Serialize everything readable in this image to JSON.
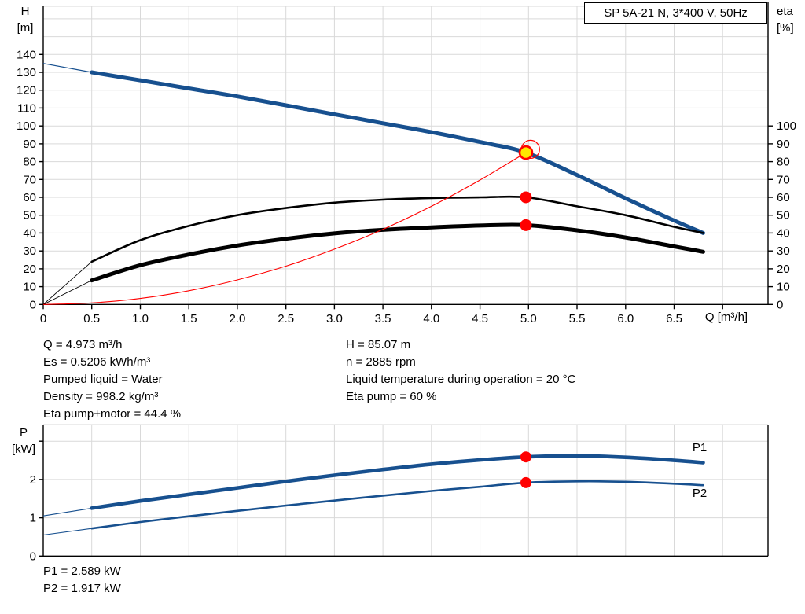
{
  "title_box": {
    "label": "SP 5A-21 N, 3*400 V, 50Hz"
  },
  "info_block": {
    "left": [
      "Q = 4.973 m³/h",
      "Es = 0.5206 kWh/m³",
      "Pumped liquid = Water",
      "Density = 998.2 kg/m³",
      "Eta pump+motor = 44.4 %"
    ],
    "right": [
      "H = 85.07 m",
      "n = 2885 rpm",
      "Liquid temperature during operation = 20 °C",
      "Eta pump = 60 %"
    ]
  },
  "power_block": {
    "lines": [
      "P1 = 2.589 kW",
      "P2 = 1.917 kW"
    ]
  },
  "colors": {
    "curve_blue": "#17508f",
    "curve_black": "#000000",
    "system_red": "#ff0000",
    "marker_red": "#ff0000",
    "marker_yellow": "#ffe600",
    "grid": "#d9d9d9",
    "axis": "#000000"
  },
  "chart_data": [
    {
      "type": "line",
      "name": "hq-eta-chart",
      "title": "SP 5A-21 N, 3*400 V, 50Hz",
      "grid": true,
      "x_axis": {
        "label": "Q [m³/h]",
        "min": 0,
        "max": 7.47,
        "tick_step": 0.5,
        "last_labeled_tick": 6.5
      },
      "y_left_axis": {
        "label": "H",
        "unit": "[m]",
        "min": 0,
        "max": 166,
        "tick_step": 10,
        "last_labeled_tick": 140
      },
      "y_right_axis": {
        "label": "eta",
        "unit": "[%]",
        "min": 0,
        "max": 100,
        "tick_step": 10,
        "last_labeled_tick": 100
      },
      "series": [
        {
          "name": "pump-curve-H",
          "color": "#17508f",
          "width": 5,
          "thin_lead_width": 1.2,
          "lead_until_q": 0.5,
          "points": [
            [
              0,
              135
            ],
            [
              0.5,
              130
            ],
            [
              1,
              125.5
            ],
            [
              1.5,
              121
            ],
            [
              2,
              116.5
            ],
            [
              2.5,
              111.5
            ],
            [
              3,
              106.5
            ],
            [
              3.5,
              101.5
            ],
            [
              4,
              96.5
            ],
            [
              4.5,
              91
            ],
            [
              4.973,
              85.07
            ],
            [
              5.5,
              72.5
            ],
            [
              6,
              59.5
            ],
            [
              6.5,
              47
            ],
            [
              6.8,
              40
            ]
          ]
        },
        {
          "name": "eta-pump-curve",
          "color": "#000000",
          "width": 2.6,
          "thin_lead_width": 0.9,
          "lead_until_q": 0.5,
          "points": [
            [
              0,
              0
            ],
            [
              0.5,
              24
            ],
            [
              1,
              36
            ],
            [
              1.5,
              44
            ],
            [
              2,
              50
            ],
            [
              2.5,
              54
            ],
            [
              3,
              57
            ],
            [
              3.5,
              58.7
            ],
            [
              4,
              59.6
            ],
            [
              4.5,
              60
            ],
            [
              4.973,
              60
            ],
            [
              5.5,
              55
            ],
            [
              6,
              50
            ],
            [
              6.5,
              43.5
            ],
            [
              6.8,
              40
            ]
          ]
        },
        {
          "name": "eta-pump-plus-motor-curve",
          "color": "#000000",
          "width": 5,
          "thin_lead_width": 0.9,
          "lead_until_q": 0.5,
          "points": [
            [
              0,
              0
            ],
            [
              0.5,
              13.5
            ],
            [
              1,
              22
            ],
            [
              1.5,
              28
            ],
            [
              2,
              33
            ],
            [
              2.5,
              36.8
            ],
            [
              3,
              39.8
            ],
            [
              3.5,
              41.8
            ],
            [
              4,
              43.2
            ],
            [
              4.5,
              44.2
            ],
            [
              4.973,
              44.4
            ],
            [
              5.5,
              41.5
            ],
            [
              6,
              37.5
            ],
            [
              6.5,
              32.5
            ],
            [
              6.8,
              29.5
            ]
          ]
        },
        {
          "name": "system-curve",
          "color": "#ff0000",
          "width": 1.1,
          "points": [
            [
              0,
              0
            ],
            [
              0.5,
              0.9
            ],
            [
              1,
              3.4
            ],
            [
              1.5,
              7.7
            ],
            [
              2,
              13.8
            ],
            [
              2.5,
              21.5
            ],
            [
              3,
              31
            ],
            [
              3.5,
              42.1
            ],
            [
              4,
              55
            ],
            [
              4.5,
              69.7
            ],
            [
              4.973,
              85.07
            ]
          ]
        }
      ],
      "markers": [
        {
          "name": "duty-point-ring",
          "shape": "ring",
          "q": 5.02,
          "value": 86.9,
          "r": 11.5,
          "stroke": "#ff0000",
          "stroke_width": 1.2
        },
        {
          "name": "duty-point",
          "shape": "dot",
          "q": 4.973,
          "value": 85.07,
          "r": 8,
          "fill": "#ffe600",
          "stroke": "#ff0000",
          "stroke_width": 2.6
        },
        {
          "name": "eta-pump-point",
          "shape": "dot",
          "q": 4.973,
          "value": 60,
          "r": 7.5,
          "fill": "#ff0000"
        },
        {
          "name": "eta-pump-motor-point",
          "shape": "dot",
          "q": 4.973,
          "value": 44.4,
          "r": 7.5,
          "fill": "#ff0000"
        }
      ]
    },
    {
      "type": "line",
      "name": "power-chart",
      "grid": true,
      "x_axis": {
        "min": 0,
        "max": 7.47,
        "tick_step": 0.5,
        "labels": false
      },
      "y_left_axis": {
        "label": "P",
        "unit": "[kW]",
        "min": 0,
        "max": 3.4,
        "tick_step": 1,
        "last_labeled_tick": 2,
        "last_tick": 3
      },
      "series": [
        {
          "name": "p1-curve",
          "color": "#17508f",
          "width": 4.6,
          "thin_lead_width": 1.1,
          "lead_until_q": 0.5,
          "points": [
            [
              0,
              1.05
            ],
            [
              0.5,
              1.25
            ],
            [
              1,
              1.44
            ],
            [
              1.5,
              1.61
            ],
            [
              2,
              1.78
            ],
            [
              2.5,
              1.95
            ],
            [
              3,
              2.11
            ],
            [
              3.5,
              2.26
            ],
            [
              4,
              2.4
            ],
            [
              4.5,
              2.51
            ],
            [
              4.973,
              2.589
            ],
            [
              5.5,
              2.62
            ],
            [
              6,
              2.58
            ],
            [
              6.5,
              2.5
            ],
            [
              6.8,
              2.44
            ]
          ]
        },
        {
          "name": "p2-curve",
          "color": "#17508f",
          "width": 2.6,
          "thin_lead_width": 1.1,
          "lead_until_q": 0.5,
          "points": [
            [
              0,
              0.55
            ],
            [
              0.5,
              0.72
            ],
            [
              1,
              0.89
            ],
            [
              1.5,
              1.04
            ],
            [
              2,
              1.18
            ],
            [
              2.5,
              1.32
            ],
            [
              3,
              1.45
            ],
            [
              3.5,
              1.58
            ],
            [
              4,
              1.7
            ],
            [
              4.5,
              1.81
            ],
            [
              4.973,
              1.917
            ],
            [
              5.5,
              1.95
            ],
            [
              6,
              1.94
            ],
            [
              6.5,
              1.89
            ],
            [
              6.8,
              1.85
            ]
          ]
        }
      ],
      "markers": [
        {
          "name": "p1-point",
          "shape": "dot",
          "q": 4.973,
          "value": 2.589,
          "r": 7,
          "fill": "#ff0000"
        },
        {
          "name": "p2-point",
          "shape": "dot",
          "q": 4.973,
          "value": 1.917,
          "r": 7,
          "fill": "#ff0000"
        }
      ],
      "curve_labels": [
        {
          "text": "P1",
          "q": 6.69,
          "value": 2.74
        },
        {
          "text": "P2",
          "q": 6.69,
          "value": 1.55
        }
      ]
    }
  ]
}
